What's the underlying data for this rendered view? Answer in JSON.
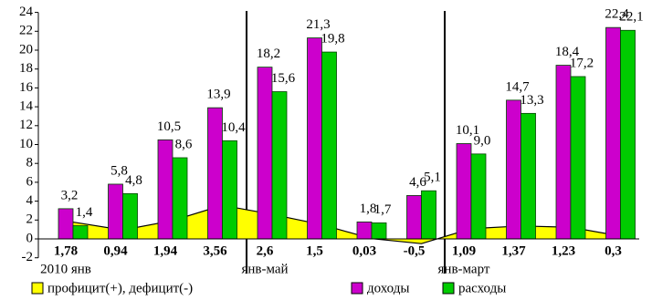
{
  "chart_data": {
    "type": "bar",
    "categories": [
      "2010 янв",
      null,
      null,
      null,
      "янв-май",
      null,
      null,
      null,
      "янв-март",
      null,
      null,
      null
    ],
    "series": [
      {
        "name": "профицит(+), дефицит(-)",
        "type": "area",
        "color": "#ffff00",
        "values": [
          1.78,
          0.94,
          1.94,
          3.56,
          2.6,
          1.5,
          0.03,
          -0.5,
          1.09,
          1.37,
          1.23,
          0.3
        ],
        "value_labels": [
          "1,78",
          "0,94",
          "1,94",
          "3,56",
          "2,6",
          "1,5",
          "0,03",
          "-0,5",
          "1,09",
          "1,37",
          "1,23",
          "0,3"
        ]
      },
      {
        "name": "доходы",
        "color": "#cc00cc",
        "values": [
          3.2,
          5.8,
          10.5,
          13.9,
          18.2,
          21.3,
          1.8,
          4.6,
          10.1,
          14.7,
          18.4,
          22.4
        ],
        "value_labels": [
          "3,2",
          "5,8",
          "10,5",
          "13,9",
          "18,2",
          "21,3",
          "1,8",
          "4,6",
          "10,1",
          "14,7",
          "18,4",
          "22,4"
        ]
      },
      {
        "name": "расходы",
        "color": "#00cc00",
        "values": [
          1.4,
          4.8,
          8.6,
          10.4,
          15.6,
          19.8,
          1.7,
          5.1,
          9.0,
          13.3,
          17.2,
          22.1
        ],
        "value_labels": [
          "1,4",
          "4,8",
          "8,6",
          "10,4",
          "15,6",
          "19,8",
          "1,7",
          "5,1",
          "9,0",
          "13,3",
          "17,2",
          "22,1"
        ]
      }
    ],
    "ylim": [
      -2,
      24
    ],
    "yticks": [
      -2,
      0,
      2,
      4,
      6,
      8,
      10,
      12,
      14,
      16,
      18,
      20,
      22,
      24
    ]
  }
}
